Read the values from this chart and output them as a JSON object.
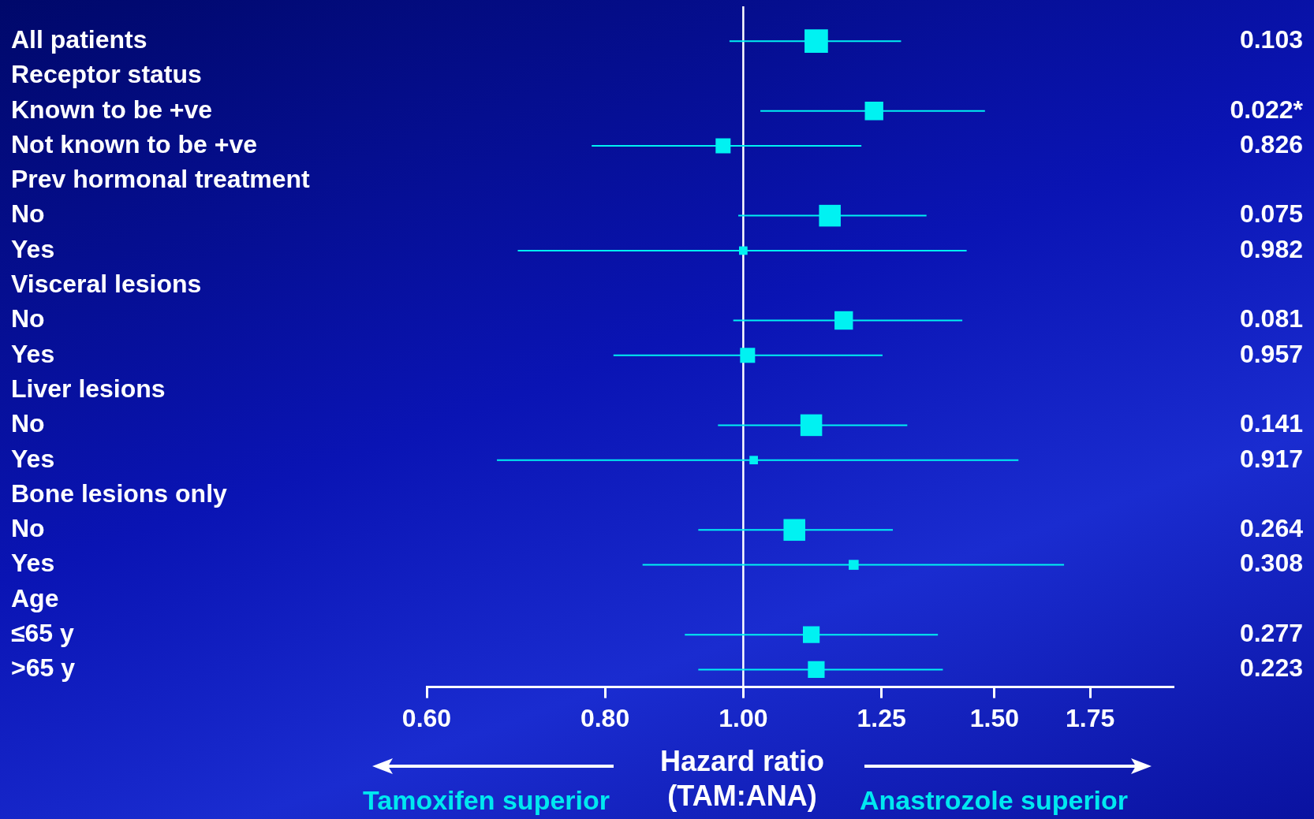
{
  "chart_data": {
    "type": "bubble",
    "orientation": "horizontal",
    "marker": "square",
    "legend": false,
    "grid": false,
    "log": "x",
    "categories": [
      "All patients",
      "Receptor status",
      "Known to be +ve",
      "Not known to be +ve",
      "Prev hormonal treatment",
      "No",
      "Yes",
      "Visceral lesions",
      "No",
      "Yes",
      "Liver lesions",
      "No",
      "Yes",
      "Bone lesions only",
      "No",
      "Yes",
      "Age",
      "≤65 y",
      ">65 y"
    ],
    "values": [
      1.125,
      null,
      1.235,
      0.968,
      null,
      1.15,
      1.0,
      null,
      1.176,
      1.007,
      null,
      1.116,
      1.017,
      null,
      1.086,
      1.195,
      null,
      1.116,
      1.125
    ],
    "errors": [
      [
        0.978,
        1.29
      ],
      null,
      [
        1.028,
        1.477
      ],
      [
        0.783,
        1.21
      ],
      null,
      [
        0.992,
        1.344
      ],
      [
        0.695,
        1.434
      ],
      null,
      [
        0.984,
        1.424
      ],
      [
        0.811,
        1.252
      ],
      null,
      [
        0.96,
        1.303
      ],
      [
        0.672,
        1.559
      ],
      null,
      [
        0.93,
        1.273
      ],
      [
        0.85,
        1.678
      ],
      null,
      [
        0.91,
        1.369
      ],
      [
        0.93,
        1.38
      ]
    ],
    "sizes": [
      1,
      null,
      0.62,
      0.41,
      null,
      0.86,
      0.13,
      null,
      0.62,
      0.41,
      null,
      0.86,
      0.13,
      null,
      0.86,
      0.18,
      null,
      0.51,
      0.51
    ],
    "color": "#00f2f2",
    "xlim": [
      0.6,
      2.0
    ],
    "xticks": [
      {
        "value": 0.6,
        "label": "0.60"
      },
      {
        "value": 0.8,
        "label": "0.80"
      },
      {
        "value": 1.0,
        "label": "1.00"
      },
      {
        "value": 1.25,
        "label": "1.25"
      },
      {
        "value": 1.5,
        "label": "1.50"
      },
      {
        "value": 1.75,
        "label": "1.75"
      }
    ],
    "xlabel": "Hazard ratio (TAM:ANA)",
    "ref_lines": [
      {
        "axis": "x",
        "value": 1.0,
        "color": "#ffffff"
      }
    ],
    "annotations": [
      "Tamoxifen superior",
      "Anastrozole superior",
      "0.103",
      "0.022*",
      "0.826",
      "0.075",
      "0.982",
      "0.081",
      "0.957",
      "0.141",
      "0.917",
      "0.264",
      "0.308",
      "0.277",
      "0.223"
    ]
  }
}
